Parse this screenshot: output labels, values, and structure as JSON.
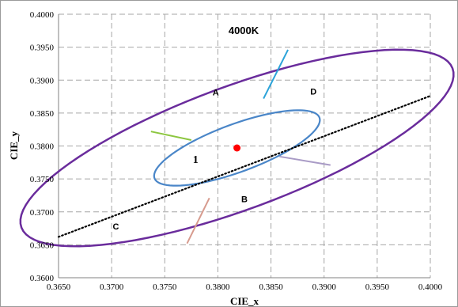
{
  "chart_data": {
    "type": "scatter",
    "title": "4000K",
    "xlabel": "CIE_x",
    "ylabel": "CIE_y",
    "xlim": [
      0.365,
      0.4
    ],
    "ylim": [
      0.36,
      0.4
    ],
    "grid": true,
    "x_ticks": [
      "0.3650",
      "0.3700",
      "0.3750",
      "0.3800",
      "0.3850",
      "0.3900",
      "0.3950",
      "0.4000"
    ],
    "y_ticks": [
      "0.3600",
      "0.3650",
      "0.3700",
      "0.3750",
      "0.3800",
      "0.3850",
      "0.3900",
      "0.3950",
      "0.4000"
    ],
    "center_point": {
      "x": 0.3818,
      "y": 0.3797,
      "color": "#ff0000"
    },
    "dotted_line": {
      "points": [
        [
          0.365,
          0.3662
        ],
        [
          0.4,
          0.3876
        ]
      ],
      "color": "#000000"
    },
    "inner_ellipse": {
      "cx": 0.3818,
      "cy": 0.3797,
      "rx": 0.0091,
      "ry": 0.0033,
      "angle": 33.5,
      "color": "#4a86c8"
    },
    "outer_ellipse": {
      "cx": 0.3818,
      "cy": 0.3797,
      "rx": 0.0238,
      "ry": 0.0085,
      "angle": 33.5,
      "color": "#6a2c9c"
    },
    "sector_lines": [
      {
        "from": [
          0.3843,
          0.3872
        ],
        "to": [
          0.3866,
          0.3946
        ],
        "color": "#2ba3d9"
      },
      {
        "from": [
          0.3775,
          0.3809
        ],
        "to": [
          0.3737,
          0.3822
        ],
        "color": "#8cc63f"
      },
      {
        "from": [
          0.3858,
          0.3784
        ],
        "to": [
          0.3906,
          0.3771
        ],
        "color": "#a99bc6"
      },
      {
        "from": [
          0.3792,
          0.3721
        ],
        "to": [
          0.3771,
          0.3652
        ],
        "color": "#d79b8e"
      }
    ],
    "region_labels": [
      {
        "text": "A",
        "x": 0.3798,
        "y": 0.3877
      },
      {
        "text": "B",
        "x": 0.3825,
        "y": 0.3715
      },
      {
        "text": "C",
        "x": 0.3704,
        "y": 0.3673
      },
      {
        "text": "D",
        "x": 0.389,
        "y": 0.3878
      },
      {
        "text": "1",
        "x": 0.3779,
        "y": 0.3774
      }
    ],
    "colors": {
      "grid": "#a6a6a6",
      "axis": "#808080",
      "outer_border": "#9a9a9a"
    }
  }
}
